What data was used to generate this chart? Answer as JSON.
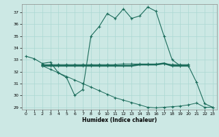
{
  "xlabel": "Humidex (Indice chaleur)",
  "bg_color": "#cce8e4",
  "grid_color": "#aad8d2",
  "line_color": "#1a6b5a",
  "xlim": [
    -0.5,
    23.5
  ],
  "ylim": [
    28.8,
    37.7
  ],
  "yticks": [
    29,
    30,
    31,
    32,
    33,
    34,
    35,
    36,
    37
  ],
  "xticks": [
    0,
    1,
    2,
    3,
    4,
    5,
    6,
    7,
    8,
    9,
    10,
    11,
    12,
    13,
    14,
    15,
    16,
    17,
    18,
    19,
    20,
    21,
    22,
    23
  ],
  "series1_x": [
    0,
    1,
    2,
    3,
    4,
    5,
    6,
    7,
    8,
    9,
    10,
    11,
    12,
    13,
    14,
    15,
    16,
    17,
    18,
    19,
    20,
    21,
    22,
    23
  ],
  "series1_y": [
    33.3,
    33.1,
    32.7,
    32.8,
    31.9,
    31.5,
    30.0,
    30.5,
    35.0,
    35.8,
    36.9,
    36.5,
    37.3,
    36.5,
    36.7,
    37.45,
    37.1,
    35.0,
    33.0,
    32.5,
    32.5,
    31.1,
    29.3,
    29.0
  ],
  "series2_x": [
    2,
    3,
    4,
    5,
    6,
    7,
    8,
    9,
    10,
    11,
    12,
    13,
    14,
    15,
    16,
    17,
    18,
    19,
    20
  ],
  "series2_y": [
    32.5,
    32.5,
    32.5,
    32.5,
    32.5,
    32.5,
    32.5,
    32.5,
    32.5,
    32.5,
    32.5,
    32.5,
    32.6,
    32.6,
    32.6,
    32.7,
    32.5,
    32.5,
    32.5
  ],
  "series3_x": [
    2,
    3,
    4,
    5,
    6,
    7,
    8,
    9,
    10,
    11,
    12,
    13,
    14,
    15,
    16,
    17,
    18,
    19,
    20
  ],
  "series3_y": [
    32.6,
    32.6,
    32.6,
    32.6,
    32.6,
    32.6,
    32.6,
    32.6,
    32.6,
    32.6,
    32.65,
    32.65,
    32.65,
    32.65,
    32.65,
    32.65,
    32.6,
    32.6,
    32.6
  ],
  "series4_x": [
    2,
    3,
    4,
    5,
    6,
    7,
    8,
    9,
    10,
    11,
    12,
    13,
    14,
    15,
    16,
    17,
    18,
    19,
    20,
    21,
    22,
    23
  ],
  "series4_y": [
    32.5,
    32.2,
    31.9,
    31.6,
    31.3,
    31.0,
    30.7,
    30.4,
    30.1,
    29.8,
    29.6,
    29.4,
    29.2,
    29.0,
    28.95,
    29.0,
    29.05,
    29.1,
    29.2,
    29.35,
    29.0,
    29.0
  ]
}
